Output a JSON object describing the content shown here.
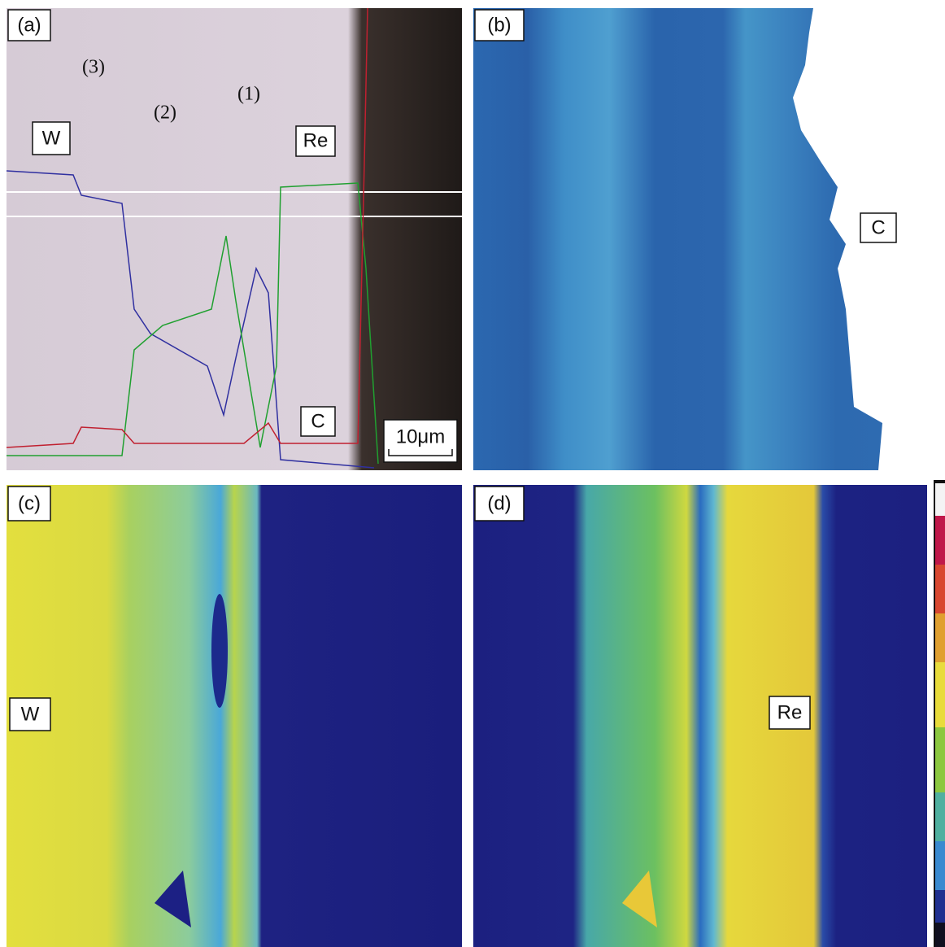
{
  "panels": [
    {
      "label": "(a)",
      "annotations": [
        "(3)",
        "(2)",
        "(1)",
        "W",
        "Re",
        "C"
      ],
      "scale_bar": "10μm"
    },
    {
      "label": "(b)",
      "annotations": [
        "C"
      ]
    },
    {
      "label": "(c)",
      "annotations": [
        "W"
      ]
    },
    {
      "label": "(d)",
      "annotations": [
        "Re"
      ]
    }
  ]
}
